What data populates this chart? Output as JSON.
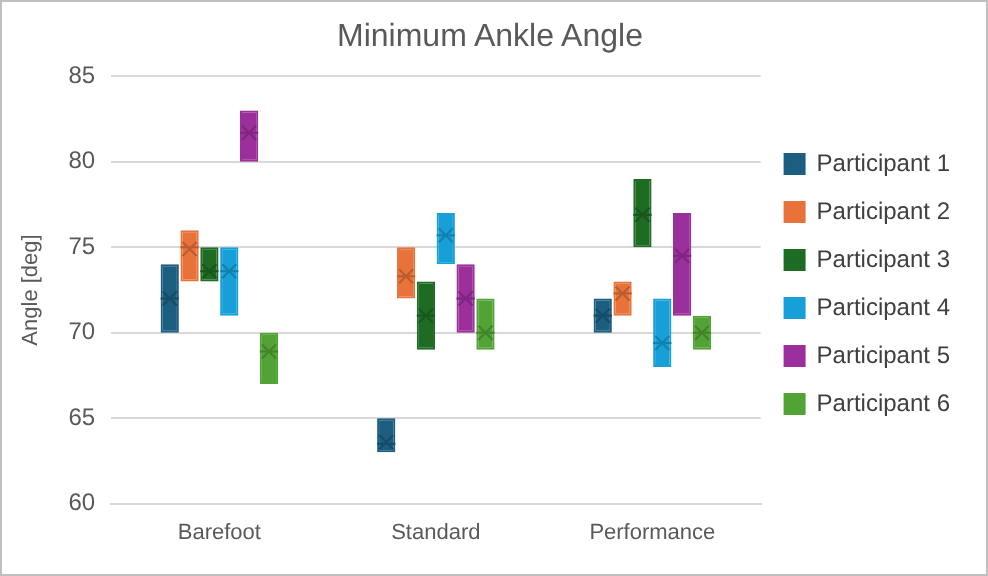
{
  "chart_data": {
    "type": "box",
    "title": "Minimum Ankle Angle",
    "ylabel": "Angle [deg]",
    "categories": [
      "Barefoot",
      "Standard",
      "Performance"
    ],
    "ylim": [
      60,
      85
    ],
    "yticks": [
      60,
      65,
      70,
      75,
      80,
      85
    ],
    "grid": "y",
    "legend": "right",
    "series": [
      {
        "name": "Participant 1",
        "color": "#1b5e80",
        "boxes": [
          {
            "low": 70,
            "q1": 70,
            "median": 72,
            "q3": 74,
            "high": 74,
            "mean": 72
          },
          {
            "low": 63,
            "q1": 63,
            "median": 63.5,
            "q3": 65,
            "high": 65,
            "mean": 63.6
          },
          {
            "low": 70,
            "q1": 70,
            "median": 71,
            "q3": 72,
            "high": 72,
            "mean": 71
          }
        ]
      },
      {
        "name": "Participant 2",
        "color": "#e8733a",
        "boxes": [
          {
            "low": 73,
            "q1": 73,
            "median": 75,
            "q3": 76,
            "high": 76,
            "mean": 74.9
          },
          {
            "low": 72,
            "q1": 72,
            "median": 73.3,
            "q3": 75,
            "high": 75,
            "mean": 73.3
          },
          {
            "low": 71,
            "q1": 71,
            "median": 72.3,
            "q3": 73,
            "high": 73,
            "mean": 72.3
          }
        ]
      },
      {
        "name": "Participant 3",
        "color": "#1e6b24",
        "boxes": [
          {
            "low": 73,
            "q1": 73,
            "median": 73.6,
            "q3": 75,
            "high": 75,
            "mean": 73.6
          },
          {
            "low": 69,
            "q1": 69,
            "median": 71,
            "q3": 73,
            "high": 73,
            "mean": 71
          },
          {
            "low": 75,
            "q1": 75,
            "median": 76.9,
            "q3": 79,
            "high": 79,
            "mean": 76.9
          }
        ]
      },
      {
        "name": "Participant 4",
        "color": "#17a0d8",
        "boxes": [
          {
            "low": 71,
            "q1": 71,
            "median": 73.6,
            "q3": 75,
            "high": 75,
            "mean": 73.6
          },
          {
            "low": 74,
            "q1": 74,
            "median": 75.7,
            "q3": 77,
            "high": 77,
            "mean": 75.7
          },
          {
            "low": 68,
            "q1": 68,
            "median": 69.4,
            "q3": 72,
            "high": 72,
            "mean": 69.4
          }
        ]
      },
      {
        "name": "Participant 5",
        "color": "#9b2f9c",
        "boxes": [
          {
            "low": 80,
            "q1": 80,
            "median": 81.7,
            "q3": 83,
            "high": 83,
            "mean": 81.7
          },
          {
            "low": 70,
            "q1": 70,
            "median": 72,
            "q3": 74,
            "high": 74,
            "mean": 72
          },
          {
            "low": 71,
            "q1": 71,
            "median": 74.5,
            "q3": 77,
            "high": 77,
            "mean": 74.5
          }
        ]
      },
      {
        "name": "Participant 6",
        "color": "#52a335",
        "boxes": [
          {
            "low": 67,
            "q1": 67,
            "median": 68.9,
            "q3": 70,
            "high": 70,
            "mean": 68.9
          },
          {
            "low": 69,
            "q1": 69,
            "median": 70,
            "q3": 72,
            "high": 72,
            "mean": 70
          },
          {
            "low": 69,
            "q1": 69,
            "median": 70,
            "q3": 71,
            "high": 71,
            "mean": 70
          }
        ]
      }
    ]
  }
}
